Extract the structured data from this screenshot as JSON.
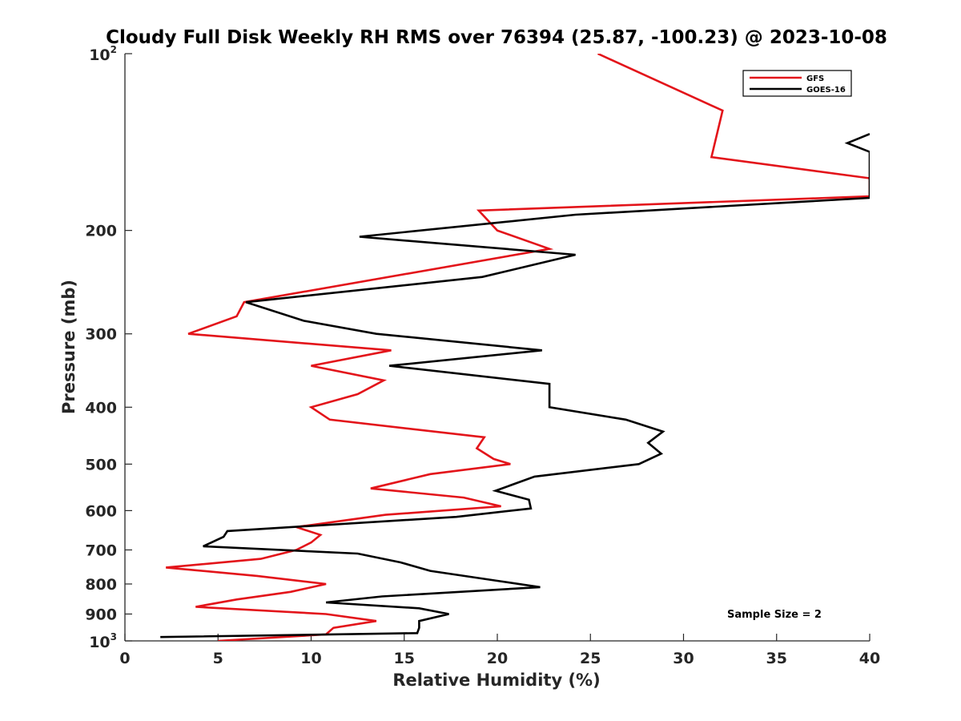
{
  "chart_data": {
    "type": "line",
    "title": "Cloudy Full Disk Weekly RH RMS over 76394 (25.87, -100.23) @ 2023-10-08",
    "xlabel": "Relative Humidity (%)",
    "ylabel": "Pressure (mb)",
    "xlim": [
      0,
      40
    ],
    "ylim": [
      100,
      1000
    ],
    "y_scale": "log",
    "y_reversed": true,
    "xticks": [
      "0",
      "5",
      "10",
      "15",
      "20",
      "25",
      "30",
      "35",
      "40"
    ],
    "yticks": [
      "200",
      "300",
      "400",
      "500",
      "600",
      "700",
      "800",
      "900"
    ],
    "ytick_end_top": {
      "base": "10",
      "exp": "2"
    },
    "ytick_end_bottom": {
      "base": "10",
      "exp": "3"
    },
    "legend_position": "top-right",
    "annotation": "Sample Size = 2",
    "series": [
      {
        "name": "GFS",
        "color": "#e3141a",
        "points": [
          [
            25.4,
            100
          ],
          [
            32.1,
            125
          ],
          [
            31.5,
            150
          ],
          [
            40.0,
            163
          ],
          [
            40.0,
            175
          ],
          [
            19.0,
            185
          ],
          [
            20.0,
            200
          ],
          [
            22.8,
            215
          ],
          [
            6.4,
            265
          ],
          [
            6.0,
            280
          ],
          [
            3.4,
            300
          ],
          [
            14.3,
            320
          ],
          [
            10.0,
            340
          ],
          [
            13.9,
            360
          ],
          [
            12.5,
            380
          ],
          [
            10.0,
            400
          ],
          [
            11.0,
            420
          ],
          [
            19.3,
            450
          ],
          [
            18.9,
            470
          ],
          [
            19.8,
            490
          ],
          [
            20.7,
            500
          ],
          [
            16.4,
            520
          ],
          [
            13.2,
            550
          ],
          [
            18.2,
            570
          ],
          [
            20.2,
            590
          ],
          [
            14.0,
            610
          ],
          [
            9.2,
            640
          ],
          [
            10.5,
            660
          ],
          [
            10.0,
            680
          ],
          [
            9.2,
            700
          ],
          [
            7.3,
            725
          ],
          [
            2.2,
            750
          ],
          [
            7.1,
            775
          ],
          [
            10.8,
            800
          ],
          [
            8.9,
            825
          ],
          [
            6.0,
            850
          ],
          [
            3.8,
            875
          ],
          [
            10.8,
            900
          ],
          [
            13.5,
            925
          ],
          [
            11.2,
            950
          ],
          [
            10.8,
            975
          ],
          [
            5.0,
            1000
          ]
        ]
      },
      {
        "name": "GOES-16",
        "color": "#000000",
        "points": [
          [
            40.0,
            137
          ],
          [
            38.8,
            142
          ],
          [
            40.0,
            147
          ],
          [
            40.0,
            176
          ],
          [
            24.2,
            188
          ],
          [
            12.6,
            205
          ],
          [
            24.2,
            220
          ],
          [
            19.2,
            240
          ],
          [
            6.5,
            265
          ],
          [
            9.6,
            285
          ],
          [
            13.5,
            300
          ],
          [
            22.4,
            320
          ],
          [
            14.2,
            340
          ],
          [
            22.8,
            365
          ],
          [
            22.8,
            385
          ],
          [
            22.8,
            400
          ],
          [
            26.9,
            420
          ],
          [
            28.9,
            440
          ],
          [
            28.1,
            460
          ],
          [
            28.8,
            480
          ],
          [
            27.6,
            500
          ],
          [
            22.0,
            525
          ],
          [
            19.9,
            555
          ],
          [
            21.7,
            575
          ],
          [
            21.8,
            595
          ],
          [
            17.8,
            615
          ],
          [
            5.5,
            650
          ],
          [
            5.3,
            665
          ],
          [
            4.2,
            690
          ],
          [
            12.5,
            710
          ],
          [
            14.8,
            735
          ],
          [
            16.4,
            760
          ],
          [
            20.0,
            790
          ],
          [
            22.3,
            810
          ],
          [
            13.8,
            840
          ],
          [
            10.8,
            860
          ],
          [
            15.8,
            880
          ],
          [
            17.4,
            900
          ],
          [
            15.8,
            925
          ],
          [
            15.8,
            950
          ],
          [
            15.7,
            970
          ],
          [
            1.9,
            985
          ]
        ]
      }
    ]
  }
}
